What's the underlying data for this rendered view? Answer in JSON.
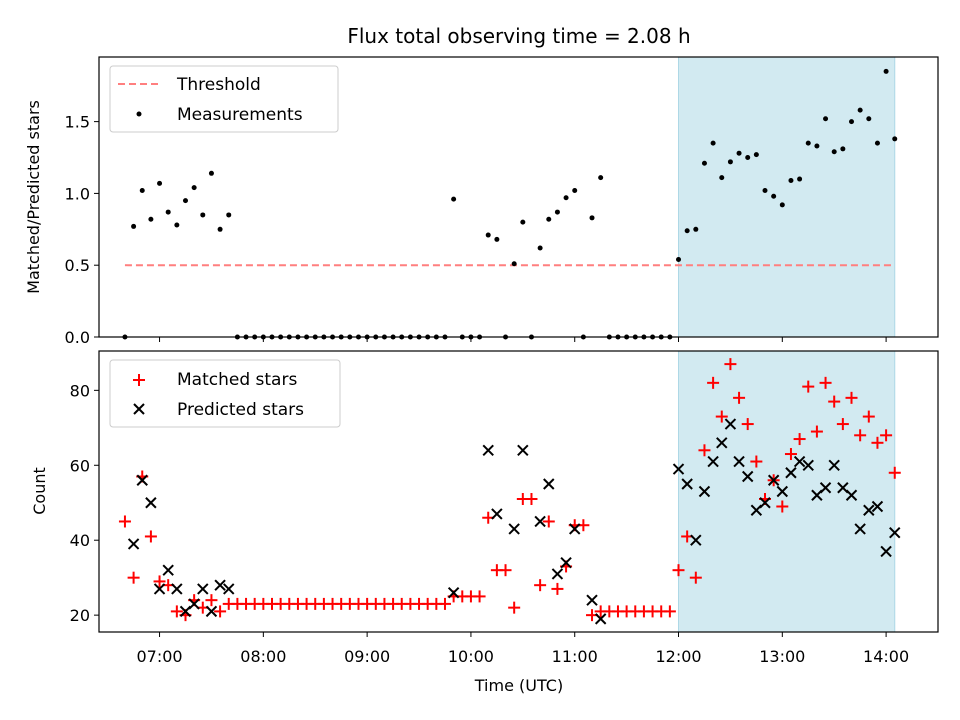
{
  "chart_data": [
    {
      "type": "scatter",
      "title": "Flux total observing time = 2.08 h",
      "xlabel": "",
      "ylabel": "Matched/Predicted stars",
      "ylim": [
        0,
        1.95
      ],
      "yticks": [
        "0.0",
        "0.5",
        "1.0",
        "1.5"
      ],
      "shaded_region": {
        "x_start": "12:00",
        "x_end": "14:05",
        "color": "#add8e6"
      },
      "legend": {
        "placement": "upper left",
        "entries": [
          "Threshold",
          "Measurements"
        ]
      },
      "threshold": {
        "name": "Threshold",
        "value": 0.5,
        "color": "#ff7f7f",
        "x_start": "06:40",
        "x_end": "14:05"
      },
      "series": [
        {
          "name": "Measurements",
          "color": "#000000",
          "points": [
            [
              "06:40",
              0.0
            ],
            [
              "06:45",
              0.77
            ],
            [
              "06:50",
              1.02
            ],
            [
              "06:55",
              0.82
            ],
            [
              "07:00",
              1.07
            ],
            [
              "07:05",
              0.87
            ],
            [
              "07:10",
              0.78
            ],
            [
              "07:15",
              0.95
            ],
            [
              "07:20",
              1.04
            ],
            [
              "07:25",
              0.85
            ],
            [
              "07:30",
              1.14
            ],
            [
              "07:35",
              0.75
            ],
            [
              "07:40",
              0.85
            ],
            [
              "07:45",
              0.0
            ],
            [
              "07:50",
              0.0
            ],
            [
              "07:55",
              0.0
            ],
            [
              "08:00",
              0.0
            ],
            [
              "08:05",
              0.0
            ],
            [
              "08:10",
              0.0
            ],
            [
              "08:15",
              0.0
            ],
            [
              "08:20",
              0.0
            ],
            [
              "08:25",
              0.0
            ],
            [
              "08:30",
              0.0
            ],
            [
              "08:35",
              0.0
            ],
            [
              "08:40",
              0.0
            ],
            [
              "08:45",
              0.0
            ],
            [
              "08:50",
              0.0
            ],
            [
              "08:55",
              0.0
            ],
            [
              "09:00",
              0.0
            ],
            [
              "09:05",
              0.0
            ],
            [
              "09:10",
              0.0
            ],
            [
              "09:15",
              0.0
            ],
            [
              "09:20",
              0.0
            ],
            [
              "09:25",
              0.0
            ],
            [
              "09:30",
              0.0
            ],
            [
              "09:35",
              0.0
            ],
            [
              "09:40",
              0.0
            ],
            [
              "09:45",
              0.0
            ],
            [
              "09:50",
              0.96
            ],
            [
              "09:55",
              0.0
            ],
            [
              "10:00",
              0.0
            ],
            [
              "10:05",
              0.0
            ],
            [
              "10:10",
              0.71
            ],
            [
              "10:15",
              0.68
            ],
            [
              "10:20",
              0.0
            ],
            [
              "10:25",
              0.51
            ],
            [
              "10:30",
              0.8
            ],
            [
              "10:35",
              0.0
            ],
            [
              "10:40",
              0.62
            ],
            [
              "10:45",
              0.82
            ],
            [
              "10:50",
              0.87
            ],
            [
              "10:55",
              0.97
            ],
            [
              "11:00",
              1.02
            ],
            [
              "11:05",
              0.0
            ],
            [
              "11:10",
              0.83
            ],
            [
              "11:15",
              1.11
            ],
            [
              "11:20",
              0.0
            ],
            [
              "11:25",
              0.0
            ],
            [
              "11:30",
              0.0
            ],
            [
              "11:35",
              0.0
            ],
            [
              "11:40",
              0.0
            ],
            [
              "11:45",
              0.0
            ],
            [
              "11:50",
              0.0
            ],
            [
              "11:55",
              0.0
            ],
            [
              "12:00",
              0.54
            ],
            [
              "12:05",
              0.74
            ],
            [
              "12:10",
              0.75
            ],
            [
              "12:15",
              1.21
            ],
            [
              "12:20",
              1.35
            ],
            [
              "12:25",
              1.11
            ],
            [
              "12:30",
              1.22
            ],
            [
              "12:35",
              1.28
            ],
            [
              "12:40",
              1.25
            ],
            [
              "12:45",
              1.27
            ],
            [
              "12:50",
              1.02
            ],
            [
              "12:55",
              0.98
            ],
            [
              "13:00",
              0.92
            ],
            [
              "13:05",
              1.09
            ],
            [
              "13:10",
              1.1
            ],
            [
              "13:15",
              1.35
            ],
            [
              "13:20",
              1.33
            ],
            [
              "13:25",
              1.52
            ],
            [
              "13:30",
              1.29
            ],
            [
              "13:35",
              1.31
            ],
            [
              "13:40",
              1.5
            ],
            [
              "13:45",
              1.58
            ],
            [
              "13:50",
              1.52
            ],
            [
              "13:55",
              1.35
            ],
            [
              "14:00",
              1.85
            ],
            [
              "14:05",
              1.38
            ]
          ]
        }
      ]
    },
    {
      "type": "scatter",
      "title": "",
      "xlabel": "Time (UTC)",
      "ylabel": "Count",
      "ylim": [
        15.5,
        90.5
      ],
      "yticks": [
        "20",
        "40",
        "60",
        "80"
      ],
      "xlim": [
        "06:25",
        "14:30"
      ],
      "xticks": [
        "07:00",
        "08:00",
        "09:00",
        "10:00",
        "11:00",
        "12:00",
        "13:00",
        "14:00"
      ],
      "shaded_region": {
        "x_start": "12:00",
        "x_end": "14:05",
        "color": "#add8e6"
      },
      "legend": {
        "placement": "upper left",
        "entries": [
          "Matched stars",
          "Predicted stars"
        ]
      },
      "series": [
        {
          "name": "Matched stars",
          "color": "#ff0000",
          "marker": "plus",
          "points": [
            [
              "06:40",
              45
            ],
            [
              "06:45",
              30
            ],
            [
              "06:50",
              57
            ],
            [
              "06:55",
              41
            ],
            [
              "07:00",
              29
            ],
            [
              "07:05",
              28
            ],
            [
              "07:10",
              21
            ],
            [
              "07:15",
              20
            ],
            [
              "07:20",
              24
            ],
            [
              "07:25",
              22
            ],
            [
              "07:30",
              24
            ],
            [
              "07:35",
              21
            ],
            [
              "07:40",
              23
            ],
            [
              "07:45",
              23
            ],
            [
              "07:50",
              23
            ],
            [
              "07:55",
              23
            ],
            [
              "08:00",
              23
            ],
            [
              "08:05",
              23
            ],
            [
              "08:10",
              23
            ],
            [
              "08:15",
              23
            ],
            [
              "08:20",
              23
            ],
            [
              "08:25",
              23
            ],
            [
              "08:30",
              23
            ],
            [
              "08:35",
              23
            ],
            [
              "08:40",
              23
            ],
            [
              "08:45",
              23
            ],
            [
              "08:50",
              23
            ],
            [
              "08:55",
              23
            ],
            [
              "09:00",
              23
            ],
            [
              "09:05",
              23
            ],
            [
              "09:10",
              23
            ],
            [
              "09:15",
              23
            ],
            [
              "09:20",
              23
            ],
            [
              "09:25",
              23
            ],
            [
              "09:30",
              23
            ],
            [
              "09:35",
              23
            ],
            [
              "09:40",
              23
            ],
            [
              "09:45",
              23
            ],
            [
              "09:50",
              25
            ],
            [
              "09:55",
              25
            ],
            [
              "10:00",
              25
            ],
            [
              "10:05",
              25
            ],
            [
              "10:10",
              46
            ],
            [
              "10:15",
              32
            ],
            [
              "10:20",
              32
            ],
            [
              "10:25",
              22
            ],
            [
              "10:30",
              51
            ],
            [
              "10:35",
              51
            ],
            [
              "10:40",
              28
            ],
            [
              "10:45",
              45
            ],
            [
              "10:50",
              27
            ],
            [
              "10:55",
              33
            ],
            [
              "11:00",
              44
            ],
            [
              "11:05",
              44
            ],
            [
              "11:10",
              20
            ],
            [
              "11:15",
              21
            ],
            [
              "11:20",
              21
            ],
            [
              "11:25",
              21
            ],
            [
              "11:30",
              21
            ],
            [
              "11:35",
              21
            ],
            [
              "11:40",
              21
            ],
            [
              "11:45",
              21
            ],
            [
              "11:50",
              21
            ],
            [
              "11:55",
              21
            ],
            [
              "12:00",
              32
            ],
            [
              "12:05",
              41
            ],
            [
              "12:10",
              30
            ],
            [
              "12:15",
              64
            ],
            [
              "12:20",
              82
            ],
            [
              "12:25",
              73
            ],
            [
              "12:30",
              87
            ],
            [
              "12:35",
              78
            ],
            [
              "12:40",
              71
            ],
            [
              "12:45",
              61
            ],
            [
              "12:50",
              51
            ],
            [
              "12:55",
              56
            ],
            [
              "13:00",
              49
            ],
            [
              "13:05",
              63
            ],
            [
              "13:10",
              67
            ],
            [
              "13:15",
              81
            ],
            [
              "13:20",
              69
            ],
            [
              "13:25",
              82
            ],
            [
              "13:30",
              77
            ],
            [
              "13:35",
              71
            ],
            [
              "13:40",
              78
            ],
            [
              "13:45",
              68
            ],
            [
              "13:50",
              73
            ],
            [
              "13:55",
              66
            ],
            [
              "14:00",
              68
            ],
            [
              "14:05",
              58
            ]
          ]
        },
        {
          "name": "Predicted stars",
          "color": "#000000",
          "marker": "x",
          "points": [
            [
              "06:45",
              39
            ],
            [
              "06:50",
              56
            ],
            [
              "06:55",
              50
            ],
            [
              "07:00",
              27
            ],
            [
              "07:05",
              32
            ],
            [
              "07:10",
              27
            ],
            [
              "07:15",
              21
            ],
            [
              "07:20",
              23
            ],
            [
              "07:25",
              27
            ],
            [
              "07:30",
              21
            ],
            [
              "07:35",
              28
            ],
            [
              "07:40",
              27
            ],
            [
              "09:50",
              26
            ],
            [
              "10:10",
              64
            ],
            [
              "10:15",
              47
            ],
            [
              "10:25",
              43
            ],
            [
              "10:30",
              64
            ],
            [
              "10:40",
              45
            ],
            [
              "10:45",
              55
            ],
            [
              "10:50",
              31
            ],
            [
              "10:55",
              34
            ],
            [
              "11:00",
              43
            ],
            [
              "11:10",
              24
            ],
            [
              "11:15",
              19
            ],
            [
              "12:00",
              59
            ],
            [
              "12:05",
              55
            ],
            [
              "12:10",
              40
            ],
            [
              "12:15",
              53
            ],
            [
              "12:20",
              61
            ],
            [
              "12:25",
              66
            ],
            [
              "12:30",
              71
            ],
            [
              "12:35",
              61
            ],
            [
              "12:40",
              57
            ],
            [
              "12:45",
              48
            ],
            [
              "12:50",
              50
            ],
            [
              "12:55",
              56
            ],
            [
              "13:00",
              53
            ],
            [
              "13:05",
              58
            ],
            [
              "13:10",
              61
            ],
            [
              "13:15",
              60
            ],
            [
              "13:20",
              52
            ],
            [
              "13:25",
              54
            ],
            [
              "13:30",
              60
            ],
            [
              "13:35",
              54
            ],
            [
              "13:40",
              52
            ],
            [
              "13:45",
              43
            ],
            [
              "13:50",
              48
            ],
            [
              "13:55",
              49
            ],
            [
              "14:00",
              37
            ],
            [
              "14:05",
              42
            ]
          ]
        }
      ]
    }
  ]
}
